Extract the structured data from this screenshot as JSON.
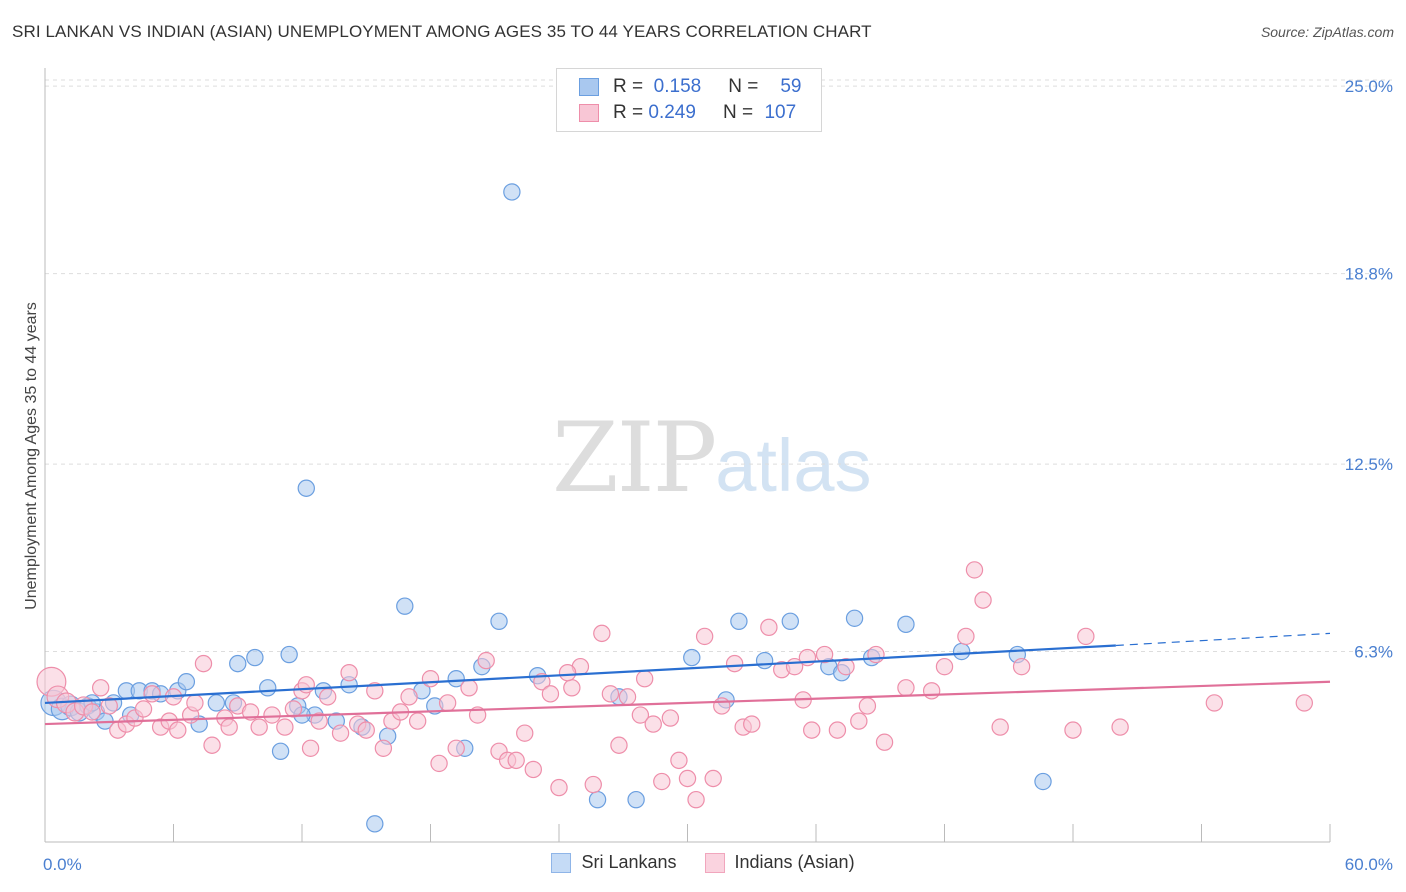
{
  "title": "SRI LANKAN VS INDIAN (ASIAN) UNEMPLOYMENT AMONG AGES 35 TO 44 YEARS CORRELATION CHART",
  "source": "Source: ZipAtlas.com",
  "watermark": {
    "zip": "ZIP",
    "atlas": "atlas"
  },
  "legend": {
    "rows": [
      {
        "r_label": "R =",
        "r_value": "0.158",
        "n_label": "N =",
        "n_value": "59",
        "color": "#a9c8ef",
        "stroke": "#6b9fe0"
      },
      {
        "r_label": "R =",
        "r_value": "0.249",
        "n_label": "N =",
        "n_value": "107",
        "color": "#f8c6d5",
        "stroke": "#ee8eaa"
      }
    ]
  },
  "bottom_legend": [
    "Sri Lankans",
    "Indians (Asian)"
  ],
  "colors": {
    "blue_fill": "#a9c8ef",
    "blue_stroke": "#6b9fe0",
    "blue_line": "#2a6fd1",
    "pink_fill": "#f8c6d5",
    "pink_stroke": "#ee8eaa",
    "pink_line": "#e07099",
    "tick_text": "#4a7fd0",
    "grid": "#dddddd"
  },
  "chart_data": {
    "type": "scatter",
    "title": "SRI LANKAN VS INDIAN (ASIAN) UNEMPLOYMENT AMONG AGES 35 TO 44 YEARS CORRELATION CHART",
    "xlabel": "",
    "ylabel": "Unemployment Among Ages 35 to 44 years",
    "xlim": [
      0,
      60
    ],
    "ylim": [
      0,
      25.6
    ],
    "x_tick_labels": [
      "0.0%",
      "60.0%"
    ],
    "y_ticks": [
      6.3,
      12.5,
      18.8,
      25.0
    ],
    "y_tick_labels": [
      "6.3%",
      "12.5%",
      "18.8%",
      "25.0%"
    ],
    "grid": "horizontal dashed",
    "legend_position": "top-center",
    "series": [
      {
        "name": "Sri Lankans",
        "R": 0.158,
        "N": 59,
        "trend": {
          "x0": 0,
          "y0": 4.6,
          "x1": 50,
          "y1": 6.5,
          "dashed_to_x": 60,
          "dashed_to_y": 6.9
        },
        "points": [
          [
            0.4,
            4.6,
            1.4
          ],
          [
            0.8,
            4.4,
            1.2
          ],
          [
            1.2,
            4.5,
            1.1
          ],
          [
            1.6,
            4.3,
            1.0
          ],
          [
            2.0,
            4.5,
            0.9
          ],
          [
            2.4,
            4.3,
            0.9
          ],
          [
            2.8,
            4.0,
            0.9
          ],
          [
            3.2,
            4.6,
            0.9
          ],
          [
            3.8,
            5.0,
            0.9
          ],
          [
            4.4,
            5.0,
            0.9
          ],
          [
            5.0,
            5.0,
            0.9
          ],
          [
            5.4,
            4.9,
            0.9
          ],
          [
            6.2,
            5.0,
            0.9
          ],
          [
            6.6,
            5.3,
            0.9
          ],
          [
            7.2,
            3.9,
            0.9
          ],
          [
            8.0,
            4.6,
            0.9
          ],
          [
            8.8,
            4.6,
            0.9
          ],
          [
            9.0,
            5.9,
            0.9
          ],
          [
            9.8,
            6.1,
            0.9
          ],
          [
            10.4,
            5.1,
            0.9
          ],
          [
            11.0,
            3.0,
            0.9
          ],
          [
            11.4,
            6.2,
            0.9
          ],
          [
            11.8,
            4.5,
            0.9
          ],
          [
            12.2,
            11.7,
            0.9
          ],
          [
            12.6,
            4.2,
            0.9
          ],
          [
            13.0,
            5.0,
            0.9
          ],
          [
            13.6,
            4.0,
            0.9
          ],
          [
            14.2,
            5.2,
            0.9
          ],
          [
            14.8,
            3.8,
            0.9
          ],
          [
            15.4,
            0.6,
            0.9
          ],
          [
            16.0,
            3.5,
            0.9
          ],
          [
            16.8,
            7.8,
            0.9
          ],
          [
            17.6,
            5.0,
            0.9
          ],
          [
            18.2,
            4.5,
            0.9
          ],
          [
            19.2,
            5.4,
            0.9
          ],
          [
            19.6,
            3.1,
            0.9
          ],
          [
            20.4,
            5.8,
            0.9
          ],
          [
            21.2,
            7.3,
            0.9
          ],
          [
            21.8,
            21.5,
            0.9
          ],
          [
            23.0,
            5.5,
            0.9
          ],
          [
            25.8,
            1.4,
            0.9
          ],
          [
            26.8,
            4.8,
            0.9
          ],
          [
            27.6,
            1.4,
            0.9
          ],
          [
            30.2,
            6.1,
            0.9
          ],
          [
            31.8,
            4.7,
            0.9
          ],
          [
            32.4,
            7.3,
            0.9
          ],
          [
            33.6,
            6.0,
            0.9
          ],
          [
            34.8,
            7.3,
            0.9
          ],
          [
            36.6,
            5.8,
            0.9
          ],
          [
            37.8,
            7.4,
            0.9
          ],
          [
            38.6,
            6.1,
            0.9
          ],
          [
            40.2,
            7.2,
            0.9
          ],
          [
            42.8,
            6.3,
            0.9
          ],
          [
            45.4,
            6.2,
            0.9
          ],
          [
            46.6,
            2.0,
            0.9
          ],
          [
            37.2,
            5.6,
            0.9
          ],
          [
            12.0,
            4.2,
            0.9
          ],
          [
            4.0,
            4.2,
            0.9
          ],
          [
            2.2,
            4.6,
            0.9
          ]
        ]
      },
      {
        "name": "Indians (Asian)",
        "R": 0.249,
        "N": 107,
        "trend": {
          "x0": 0,
          "y0": 3.9,
          "x1": 60,
          "y1": 5.3
        },
        "points": [
          [
            0.3,
            5.3,
            1.6
          ],
          [
            0.6,
            4.8,
            1.2
          ],
          [
            1.0,
            4.6,
            1.1
          ],
          [
            1.4,
            4.3,
            1.0
          ],
          [
            1.8,
            4.5,
            1.0
          ],
          [
            2.2,
            4.3,
            0.9
          ],
          [
            2.6,
            5.1,
            0.9
          ],
          [
            3.0,
            4.5,
            0.9
          ],
          [
            3.4,
            3.7,
            0.9
          ],
          [
            3.8,
            3.9,
            0.9
          ],
          [
            4.2,
            4.1,
            0.9
          ],
          [
            4.6,
            4.4,
            0.9
          ],
          [
            5.0,
            4.9,
            0.9
          ],
          [
            5.4,
            3.8,
            0.9
          ],
          [
            5.8,
            4.0,
            0.9
          ],
          [
            6.2,
            3.7,
            0.9
          ],
          [
            6.8,
            4.2,
            0.9
          ],
          [
            7.0,
            4.6,
            0.9
          ],
          [
            7.4,
            5.9,
            0.9
          ],
          [
            7.8,
            3.2,
            0.9
          ],
          [
            8.4,
            4.1,
            0.9
          ],
          [
            8.6,
            3.8,
            0.9
          ],
          [
            9.0,
            4.5,
            0.9
          ],
          [
            9.6,
            4.3,
            0.9
          ],
          [
            10.0,
            3.8,
            0.9
          ],
          [
            10.6,
            4.2,
            0.9
          ],
          [
            11.2,
            3.8,
            0.9
          ],
          [
            11.6,
            4.4,
            0.9
          ],
          [
            12.0,
            5.0,
            0.9
          ],
          [
            12.4,
            3.1,
            0.9
          ],
          [
            12.8,
            4.0,
            0.9
          ],
          [
            13.2,
            4.8,
            0.9
          ],
          [
            13.8,
            3.6,
            0.9
          ],
          [
            14.2,
            5.6,
            0.9
          ],
          [
            14.6,
            3.9,
            0.9
          ],
          [
            15.0,
            3.7,
            0.9
          ],
          [
            15.4,
            5.0,
            0.9
          ],
          [
            15.8,
            3.1,
            0.9
          ],
          [
            16.2,
            4.0,
            0.9
          ],
          [
            16.6,
            4.3,
            0.9
          ],
          [
            17.0,
            4.8,
            0.9
          ],
          [
            17.4,
            4.0,
            0.9
          ],
          [
            18.0,
            5.4,
            0.9
          ],
          [
            18.4,
            2.6,
            0.9
          ],
          [
            18.8,
            4.6,
            0.9
          ],
          [
            19.2,
            3.1,
            0.9
          ],
          [
            19.8,
            5.1,
            0.9
          ],
          [
            20.2,
            4.2,
            0.9
          ],
          [
            20.6,
            6.0,
            0.9
          ],
          [
            21.2,
            3.0,
            0.9
          ],
          [
            21.6,
            2.7,
            0.9
          ],
          [
            22.0,
            2.7,
            0.9
          ],
          [
            22.4,
            3.6,
            0.9
          ],
          [
            22.8,
            2.4,
            0.9
          ],
          [
            23.2,
            5.3,
            0.9
          ],
          [
            23.6,
            4.9,
            0.9
          ],
          [
            24.0,
            1.8,
            0.9
          ],
          [
            24.6,
            5.1,
            0.9
          ],
          [
            25.0,
            5.8,
            0.9
          ],
          [
            25.6,
            1.9,
            0.9
          ],
          [
            26.0,
            6.9,
            0.9
          ],
          [
            26.4,
            4.9,
            0.9
          ],
          [
            26.8,
            3.2,
            0.9
          ],
          [
            27.2,
            4.8,
            0.9
          ],
          [
            27.8,
            4.2,
            0.9
          ],
          [
            28.0,
            5.4,
            0.9
          ],
          [
            28.4,
            3.9,
            0.9
          ],
          [
            28.8,
            2.0,
            0.9
          ],
          [
            29.2,
            4.1,
            0.9
          ],
          [
            29.6,
            2.7,
            0.9
          ],
          [
            30.0,
            2.1,
            0.9
          ],
          [
            30.4,
            1.4,
            0.9
          ],
          [
            30.8,
            6.8,
            0.9
          ],
          [
            31.2,
            2.1,
            0.9
          ],
          [
            31.6,
            4.5,
            0.9
          ],
          [
            32.2,
            5.9,
            0.9
          ],
          [
            32.6,
            3.8,
            0.9
          ],
          [
            33.0,
            3.9,
            0.9
          ],
          [
            33.8,
            7.1,
            0.9
          ],
          [
            34.4,
            5.7,
            0.9
          ],
          [
            35.0,
            5.8,
            0.9
          ],
          [
            35.4,
            4.7,
            0.9
          ],
          [
            35.8,
            3.7,
            0.9
          ],
          [
            36.4,
            6.2,
            0.9
          ],
          [
            37.0,
            3.7,
            0.9
          ],
          [
            37.4,
            5.8,
            0.9
          ],
          [
            38.0,
            4.0,
            0.9
          ],
          [
            38.4,
            4.5,
            0.9
          ],
          [
            38.8,
            6.2,
            0.9
          ],
          [
            39.2,
            3.3,
            0.9
          ],
          [
            40.2,
            5.1,
            0.9
          ],
          [
            41.4,
            5.0,
            0.9
          ],
          [
            42.0,
            5.8,
            0.9
          ],
          [
            43.0,
            6.8,
            0.9
          ],
          [
            43.4,
            9.0,
            0.9
          ],
          [
            43.8,
            8.0,
            0.9
          ],
          [
            44.6,
            3.8,
            0.9
          ],
          [
            45.6,
            5.8,
            0.9
          ],
          [
            48.0,
            3.7,
            0.9
          ],
          [
            48.6,
            6.8,
            0.9
          ],
          [
            50.2,
            3.8,
            0.9
          ],
          [
            54.6,
            4.6,
            0.9
          ],
          [
            58.8,
            4.6,
            0.9
          ],
          [
            35.6,
            6.1,
            0.9
          ],
          [
            24.4,
            5.6,
            0.9
          ],
          [
            12.2,
            5.2,
            0.9
          ],
          [
            6.0,
            4.8,
            0.9
          ]
        ]
      }
    ]
  }
}
